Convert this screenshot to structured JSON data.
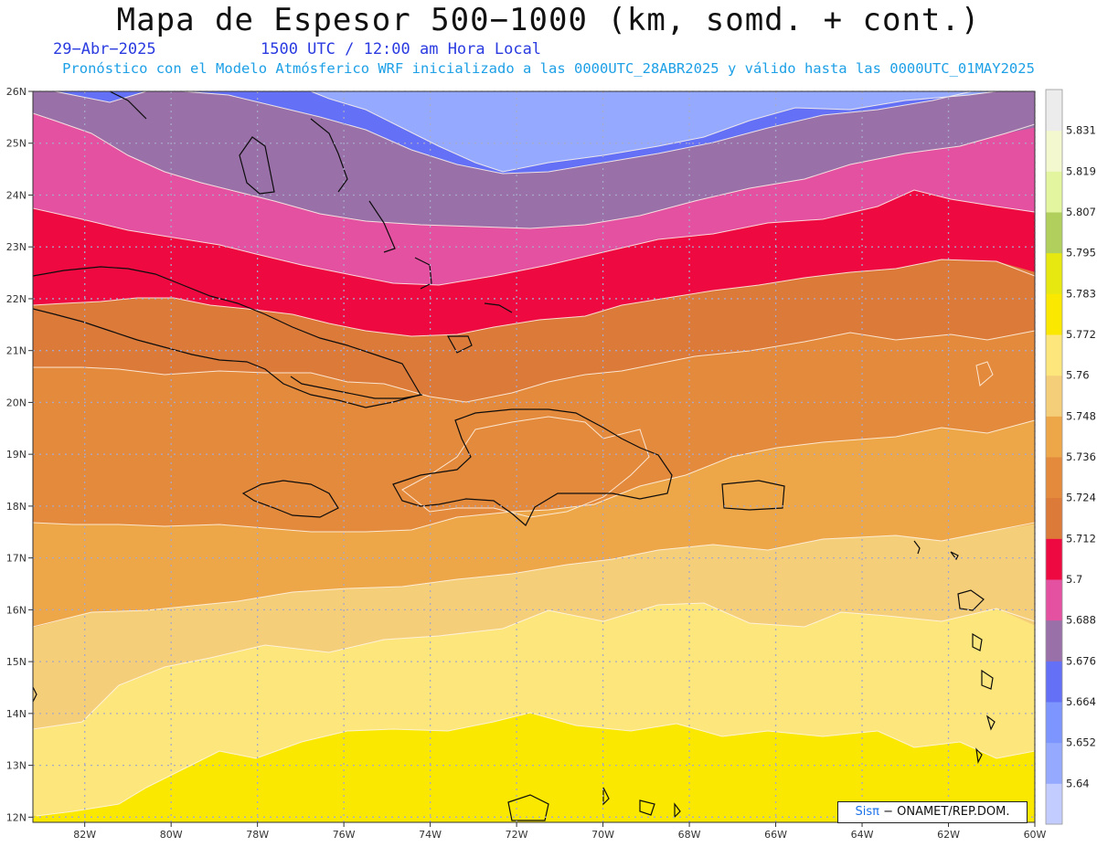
{
  "header": {
    "title": "Mapa de Espesor 500−1000 (km, somd. + cont.)",
    "date": "29−Abr−2025",
    "time": "1500 UTC / 12:00 am Hora Local",
    "subtitle": "Pronóstico con el Modelo Atmósferico WRF inicializado a las 0000UTC_28ABR2025 y válido hasta las  0000UTC_01MAY2025"
  },
  "map": {
    "lon_labels": [
      "82W",
      "80W",
      "78W",
      "76W",
      "74W",
      "72W",
      "70W",
      "68W",
      "66W",
      "64W",
      "62W",
      "60W"
    ],
    "lat_labels": [
      "26N",
      "25N",
      "24N",
      "23N",
      "22N",
      "21N",
      "20N",
      "19N",
      "18N",
      "17N",
      "16N",
      "15N",
      "14N",
      "13N",
      "12N"
    ],
    "lon_range": [
      -83.2,
      -60
    ],
    "lat_range": [
      11.9,
      26
    ],
    "grid": true
  },
  "colorbar": {
    "levels": [
      "5.64",
      "5.652",
      "5.664",
      "5.676",
      "5.688",
      "5.7",
      "5.712",
      "5.724",
      "5.736",
      "5.748",
      "5.76",
      "5.772",
      "5.783",
      "5.795",
      "5.807",
      "5.819",
      "5.831"
    ],
    "colors": [
      "#c3ccff",
      "#95aaff",
      "#7d96ff",
      "#6470f5",
      "#9a70a8",
      "#e551a1",
      "#ee0a40",
      "#dc7a3a",
      "#e48a3c",
      "#eda648",
      "#f5ce7a",
      "#fde67c",
      "#fae800",
      "#e6e810",
      "#b0cf5c",
      "#e4f5a0",
      "#f3f8cf",
      "#ececec"
    ]
  },
  "credit": {
    "brand": "Sisπ",
    "text": "− ONAMET/REP.DOM."
  }
}
